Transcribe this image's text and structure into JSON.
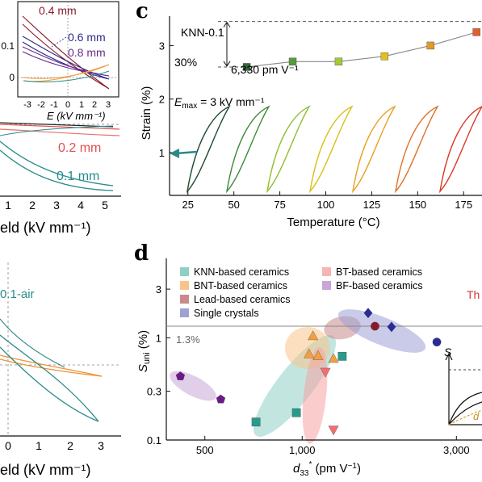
{
  "panels": {
    "c_letter": "c",
    "d_letter": "d"
  },
  "left_top": {
    "inset_labels": [
      "0.4 mm",
      "0.6 mm",
      "0.8 mm"
    ],
    "inset_label_colors": [
      "#8a1a2a",
      "#2a2a8a",
      "#6a2a8a"
    ],
    "inset_yticks": [
      "0.1",
      "0"
    ],
    "inset_xticks": [
      "-3",
      "-2",
      "-1",
      "0",
      "1",
      "2",
      "3"
    ],
    "inset_xlabel": "E (kV mm⁻¹)",
    "outer_labels": [
      "0.2 mm",
      "0.1 mm"
    ],
    "outer_xticks": [
      "1",
      "2",
      "3",
      "4",
      "5"
    ],
    "outer_xlabel": "eld (kV mm⁻¹)"
  },
  "left_bottom": {
    "label": "0.1-air",
    "xticks": [
      "0",
      "1",
      "2",
      "3"
    ],
    "xlabel": "eld (kV mm⁻¹)"
  },
  "chart_data": [
    {
      "panel": "c",
      "type": "line",
      "title": "KNN-0.1",
      "xlabel": "Temperature (°C)",
      "ylabel": "Strain (%)",
      "xticks": [
        25,
        50,
        75,
        100,
        125,
        150,
        175
      ],
      "yticks": [
        1,
        2,
        3
      ],
      "xlim": [
        15,
        185
      ],
      "ylim": [
        0.2,
        3.55
      ],
      "annotations": {
        "pct": "30%",
        "d33": "6,330 pm V⁻¹",
        "emax": "E",
        "emax_sub": "max",
        "emax_value": " = 3 kV mm⁻¹"
      },
      "series": [
        {
          "x": [
            57,
            82,
            107,
            132,
            157,
            182
          ],
          "y": [
            2.6,
            2.7,
            2.7,
            2.8,
            3.0,
            3.25
          ],
          "colors": [
            "#2f6b3a",
            "#5a9a3a",
            "#a8c838",
            "#e0c020",
            "#e09a28",
            "#e06030"
          ]
        }
      ],
      "loop_colors": [
        "#1e4a30",
        "#3e8a3a",
        "#90be30",
        "#d8c018",
        "#e8a020",
        "#e07028",
        "#d83a28"
      ]
    },
    {
      "panel": "d",
      "type": "scatter",
      "xlabel": "d₃₃* (pm V⁻¹)",
      "ylabel": "S_uni (%)",
      "xscale": "log",
      "yscale": "log",
      "xticks": [
        "500",
        "1,000",
        "3,000"
      ],
      "yticks": [
        "0.1",
        "0.3",
        "1",
        "3"
      ],
      "xlim": [
        380,
        3600
      ],
      "ylim": [
        0.1,
        6
      ],
      "reference_line": {
        "y": 1.3,
        "label": "1.3%"
      },
      "legend": [
        {
          "name": "KNN-based ceramics",
          "color": "#2a9a8a"
        },
        {
          "name": "BNT-based ceramics",
          "color": "#f0a040"
        },
        {
          "name": "Lead-based ceramics",
          "color": "#8a1a2a"
        },
        {
          "name": "Single crystals",
          "color": "#2a2a9a"
        },
        {
          "name": "BT-based ceramics",
          "color": "#f07070"
        },
        {
          "name": "BF-based ceramics",
          "color": "#6a1a8a"
        }
      ],
      "cut_label": "Th",
      "points": [
        {
          "group": "KNN-based ceramics",
          "x": 720,
          "y": 0.15,
          "marker": "square",
          "color": "#2a9a8a"
        },
        {
          "group": "KNN-based ceramics",
          "x": 960,
          "y": 0.185,
          "marker": "square",
          "color": "#2a9a8a"
        },
        {
          "group": "KNN-based ceramics",
          "x": 1330,
          "y": 0.66,
          "marker": "square",
          "color": "#2a9a8a"
        },
        {
          "group": "BNT-based ceramics",
          "x": 1080,
          "y": 1.05,
          "marker": "triangle",
          "color": "#f0a040"
        },
        {
          "group": "BNT-based ceramics",
          "x": 1050,
          "y": 0.7,
          "marker": "triangle",
          "color": "#f0a040"
        },
        {
          "group": "BNT-based ceramics",
          "x": 1120,
          "y": 0.67,
          "marker": "triangle",
          "color": "#f0a040"
        },
        {
          "group": "BNT-based ceramics",
          "x": 1250,
          "y": 0.63,
          "marker": "triangle",
          "color": "#f0a040"
        },
        {
          "group": "BT-based ceramics",
          "x": 1180,
          "y": 0.46,
          "marker": "triangle-down",
          "color": "#f07070"
        },
        {
          "group": "BT-based ceramics",
          "x": 1250,
          "y": 0.125,
          "marker": "triangle-down",
          "color": "#f07070"
        },
        {
          "group": "Lead-based ceramics",
          "x": 1680,
          "y": 1.3,
          "marker": "circle",
          "color": "#8a1a2a"
        },
        {
          "group": "Single crystals",
          "x": 1600,
          "y": 1.75,
          "marker": "diamond",
          "color": "#2a2a9a"
        },
        {
          "group": "Single crystals",
          "x": 1890,
          "y": 1.28,
          "marker": "diamond",
          "color": "#2a2a9a"
        },
        {
          "group": "Single crystals",
          "x": 2610,
          "y": 0.91,
          "marker": "circle",
          "color": "#2a2a9a"
        },
        {
          "group": "BF-based ceramics",
          "x": 420,
          "y": 0.42,
          "marker": "pentagon",
          "color": "#6a1a8a"
        },
        {
          "group": "BF-based ceramics",
          "x": 560,
          "y": 0.25,
          "marker": "pentagon",
          "color": "#6a1a8a"
        }
      ]
    }
  ],
  "d_inset": {
    "ylabel": "S",
    "curve_label": "d"
  }
}
